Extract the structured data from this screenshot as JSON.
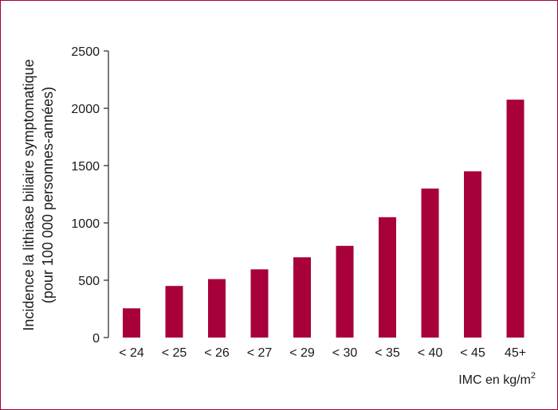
{
  "chart_data": {
    "type": "bar",
    "categories": [
      "< 24",
      "< 25",
      "< 26",
      "< 27",
      "< 29",
      "< 30",
      "< 35",
      "< 40",
      "< 45",
      "45+"
    ],
    "values": [
      255,
      450,
      510,
      595,
      700,
      800,
      1050,
      1300,
      1450,
      2075
    ],
    "ylabel": [
      "Incidence la lithiase biliaire symptomatique",
      "(pour 100 000 personnes-années)"
    ],
    "xlabel": "IMC en kg/m",
    "xlabel_superscript": "2",
    "ylim": [
      0,
      2500
    ],
    "yticks": [
      0,
      500,
      1000,
      1500,
      2000,
      2500
    ],
    "grid": false,
    "bar_color": "#a8003a",
    "frame_color": "#a6003c"
  }
}
